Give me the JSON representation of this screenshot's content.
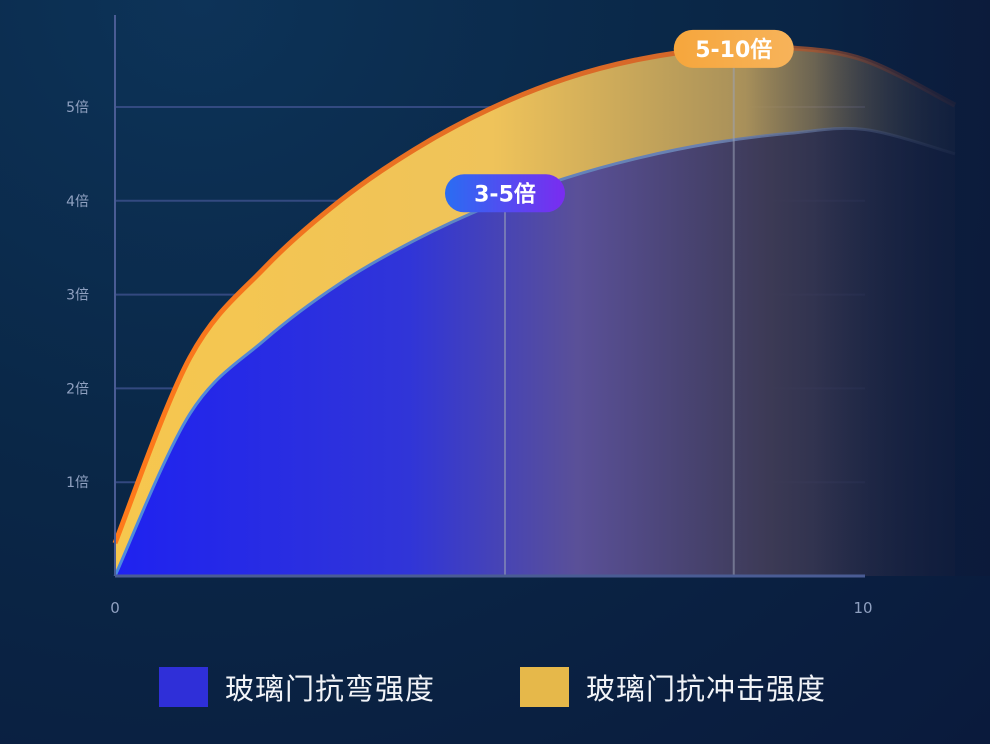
{
  "chart_data": {
    "type": "area",
    "x_ticks": [
      "0",
      "10"
    ],
    "xlim": [
      0,
      10
    ],
    "y_ticks": [
      "1倍",
      "2倍",
      "3倍",
      "4倍",
      "5倍"
    ],
    "ylim": [
      0,
      6
    ],
    "grid": true,
    "series": [
      {
        "name": "玻璃门抗弯强度",
        "color": "#2f2fd8",
        "x": [
          0,
          1,
          2,
          3,
          4,
          5,
          6,
          7,
          8,
          9,
          10
        ],
        "values": [
          0,
          1.73,
          2.52,
          3.12,
          3.58,
          3.95,
          4.24,
          4.46,
          4.62,
          4.72,
          4.76
        ]
      },
      {
        "name": "玻璃门抗冲击强度",
        "color": "#e6b84a",
        "x": [
          0,
          1,
          2,
          3,
          4,
          5,
          6,
          7,
          8,
          9,
          10
        ],
        "values": [
          0.35,
          2.33,
          3.29,
          4.0,
          4.55,
          4.98,
          5.3,
          5.51,
          5.62,
          5.63,
          5.5
        ]
      }
    ],
    "annotations": [
      {
        "text": "3-5倍",
        "x": 5.2,
        "y": 4.08,
        "style": "blue"
      },
      {
        "text": "5-10倍",
        "x": 8.25,
        "y": 5.62,
        "style": "orange"
      }
    ],
    "guide_lines_x": [
      5.2,
      8.25
    ]
  },
  "legend": {
    "items": [
      {
        "label": "玻璃门抗弯强度",
        "color": "#2f2fd8"
      },
      {
        "label": "玻璃门抗冲击强度",
        "color": "#e6b84a"
      }
    ]
  }
}
